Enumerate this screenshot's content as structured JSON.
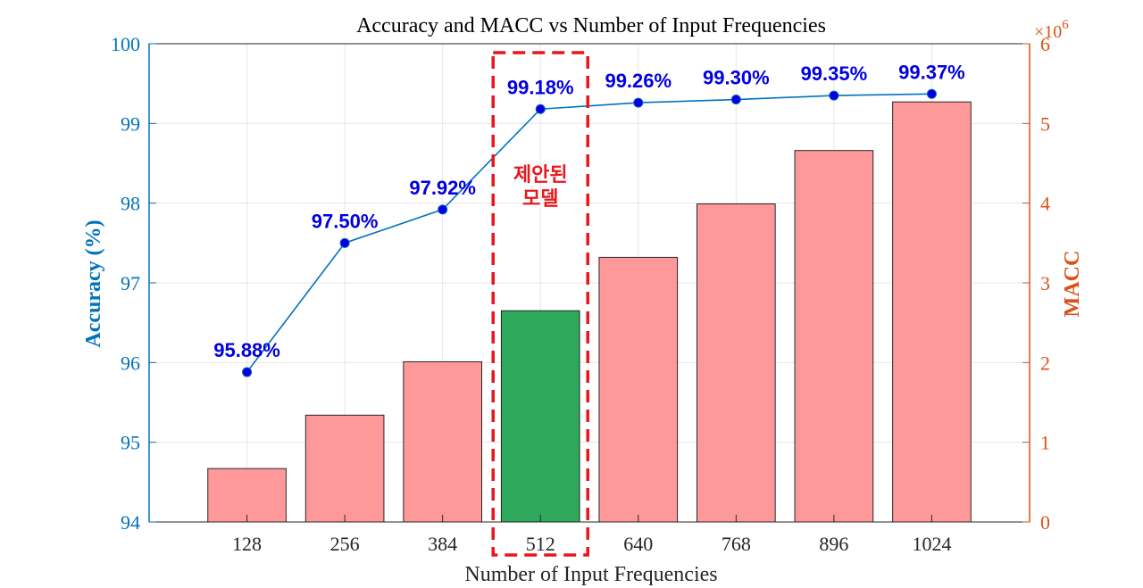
{
  "chart_data": {
    "type": "bar+line",
    "title": "Accuracy and MACC vs Number of Input Frequencies",
    "xlabel": "Number of Input Frequencies",
    "categories": [
      "128",
      "256",
      "384",
      "512",
      "640",
      "768",
      "896",
      "1024"
    ],
    "left_axis": {
      "label": "Accuracy (%)",
      "ylim": [
        94,
        100
      ],
      "ticks": [
        "94",
        "95",
        "96",
        "97",
        "98",
        "99",
        "100"
      ],
      "color": "#0072BD"
    },
    "right_axis": {
      "label": "MACC",
      "ylim": [
        0,
        6
      ],
      "ticks": [
        "0",
        "1",
        "2",
        "3",
        "4",
        "5",
        "6"
      ],
      "exponent_base": "×10",
      "exponent_power": "6",
      "color": "#D95319"
    },
    "series": [
      {
        "type": "line",
        "axis": "left",
        "values": [
          95.88,
          97.5,
          97.92,
          99.18,
          99.26,
          99.3,
          99.35,
          99.37
        ],
        "labels": [
          "95.88%",
          "97.50%",
          "97.92%",
          "99.18%",
          "99.26%",
          "99.30%",
          "99.35%",
          "99.37%"
        ],
        "color": "#0072BD",
        "label_color": "#0000E0"
      },
      {
        "type": "bar",
        "axis": "right",
        "values": [
          0.67,
          1.34,
          2.01,
          2.65,
          3.32,
          3.99,
          4.66,
          5.27
        ],
        "colors": [
          "#FF9999",
          "#FF9999",
          "#FF9999",
          "#2EA85A",
          "#FF9999",
          "#FF9999",
          "#FF9999",
          "#FF9999"
        ]
      }
    ],
    "annotation": {
      "category": "512",
      "text_lines": [
        "제안된",
        "모델"
      ],
      "color": "#E8171B"
    },
    "grid": true
  }
}
